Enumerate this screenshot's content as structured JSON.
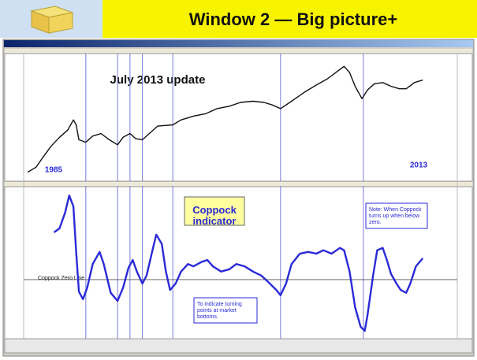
{
  "header": {
    "title": "Window 2 — Big picture+"
  },
  "chart_data": [
    {
      "type": "line",
      "title": "July 2013 update",
      "annotations": [
        "1985",
        "2013"
      ],
      "x": [
        1985.0,
        1985.6,
        1986.1,
        1986.7,
        1987.3,
        1987.9,
        1988.3,
        1988.5,
        1988.7,
        1989.2,
        1989.7,
        1990.3,
        1990.9,
        1991.5,
        1991.9,
        1992.4,
        1992.8,
        1993.3,
        1993.9,
        1994.4,
        1995.5,
        1996.1,
        1997.0,
        1997.9,
        1998.7,
        1999.6,
        2000.4,
        2001.3,
        2002.1,
        2002.7,
        2003.3,
        2004.1,
        2005.0,
        2005.9,
        2006.7,
        2007.3,
        2007.9,
        2008.3,
        2008.7,
        2009.2,
        2009.6,
        2010.1,
        2010.7,
        2011.3,
        2011.9,
        2012.4,
        2013.0,
        2013.6
      ],
      "values": [
        6,
        10,
        18,
        27,
        34,
        40,
        48,
        44,
        32,
        30,
        35,
        37,
        32,
        28,
        34,
        37,
        33,
        32,
        38,
        43,
        44,
        48,
        51,
        53,
        57,
        59,
        62,
        63,
        62,
        60,
        57,
        63,
        70,
        76,
        81,
        86,
        91,
        86,
        75,
        65,
        72,
        77,
        78,
        75,
        73,
        73,
        78,
        80
      ],
      "color": "#111111",
      "xlim": [
        1984.7,
        2016.1
      ],
      "ylim": [
        0,
        100
      ],
      "markers": [
        1989.2,
        1991.5,
        1992.4,
        1993.3,
        1995.5,
        2003.3,
        2009.3
      ],
      "marker_color": "#7a7ae0"
    },
    {
      "type": "line",
      "title": "Coppock indicator",
      "annotations": [
        "To indicate turning points at market bottoms.",
        "Note: When Coppock turns up when below zero."
      ],
      "reference_line": {
        "value": 0,
        "label": "Coppock Zero Line"
      },
      "x": [
        1986.9,
        1987.3,
        1987.7,
        1988.0,
        1988.3,
        1988.5,
        1988.7,
        1989.0,
        1989.3,
        1989.7,
        1990.2,
        1990.5,
        1991.0,
        1991.5,
        1991.9,
        1992.3,
        1992.6,
        1992.9,
        1993.3,
        1993.6,
        1994.0,
        1994.3,
        1994.7,
        1995.0,
        1995.3,
        1995.7,
        1996.1,
        1996.6,
        1997.0,
        1997.6,
        1998.0,
        1998.4,
        1999.0,
        1999.6,
        2000.1,
        2000.7,
        2001.3,
        2001.9,
        2002.4,
        2003.0,
        2003.3,
        2003.7,
        2004.1,
        2004.7,
        2005.3,
        2005.9,
        2006.4,
        2007.0,
        2007.6,
        2007.9,
        2008.3,
        2008.7,
        2009.1,
        2009.4,
        2009.6,
        2010.0,
        2010.3,
        2010.7,
        2011.0,
        2011.3,
        2011.7,
        2012.0,
        2012.4,
        2012.7,
        2013.1,
        2013.6
      ],
      "values": [
        82,
        89,
        116,
        146,
        127,
        48,
        -21,
        -34,
        -14,
        27,
        48,
        27,
        -23,
        -37,
        -14,
        21,
        34,
        14,
        -7,
        7,
        48,
        78,
        62,
        14,
        -18,
        -7,
        14,
        27,
        23,
        31,
        34,
        23,
        14,
        18,
        27,
        23,
        14,
        7,
        -4,
        -18,
        -27,
        -7,
        27,
        45,
        48,
        45,
        51,
        45,
        55,
        51,
        14,
        -48,
        -82,
        -89,
        -62,
        7,
        51,
        55,
        34,
        10,
        -7,
        -18,
        -23,
        -7,
        23,
        37
      ],
      "color": "#2a2ad8",
      "xlim": [
        1984.7,
        2016.1
      ],
      "ylim": [
        -100,
        160
      ],
      "markers": [
        1989.2,
        1991.5,
        1992.4,
        1993.3,
        1995.5,
        2003.3,
        2009.3
      ],
      "marker_color": "#7a7ae0"
    }
  ]
}
